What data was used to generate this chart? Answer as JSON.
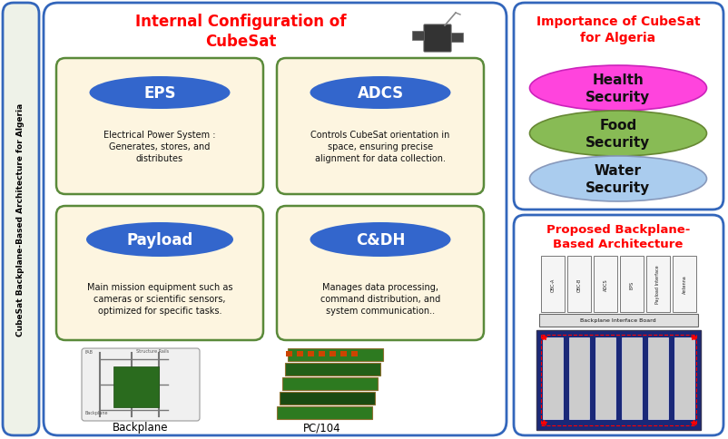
{
  "bg_color": "#ffffff",
  "main_border_color": "#3366bb",
  "left_panel_bg": "#eef2e8",
  "left_panel_text": "CubeSat Backplane-Based Architecture for Algeria",
  "left_panel_text_color": "#000000",
  "main_title": "Internal Configuration of\nCubeSat",
  "main_title_color": "#ff0000",
  "eps_box_bg": "#fdf5e0",
  "eps_box_border": "#5a8a3a",
  "eps_label": "EPS",
  "eps_desc": "Electrical Power System :\nGenerates, stores, and\ndistributes",
  "adcs_box_bg": "#fdf5e0",
  "adcs_box_border": "#5a8a3a",
  "adcs_label": "ADCS",
  "adcs_desc": "Controls CubeSat orientation in\nspace, ensuring precise\nalignment for data collection.",
  "payload_box_bg": "#fdf5e0",
  "payload_box_border": "#5a8a3a",
  "payload_label": "Payload",
  "payload_desc": "Main mission equipment such as\ncameras or scientific sensors,\noptimized for specific tasks.",
  "cdh_box_bg": "#fdf5e0",
  "cdh_box_border": "#5a8a3a",
  "cdh_label": "C&DH",
  "cdh_desc": "Manages data processing,\ncommand distribution, and\nsystem communication..",
  "subsystem_ellipse_color": "#3366cc",
  "subsystem_text_color": "#ffffff",
  "bottom_left_label": "Backplane",
  "bottom_right_label": "PC/104",
  "right_top_title": "Importance of CubeSat\nfor Algeria",
  "right_top_title_color": "#ff0000",
  "health_color": "#ff44dd",
  "food_color": "#88bb55",
  "water_color": "#aaccee",
  "health_label": "Health\nSecurity",
  "food_label": "Food\nSecurity",
  "water_label": "Water\nSecurity",
  "right_bottom_title": "Proposed Backplane-\nBased Architecture",
  "right_bottom_title_color": "#ff0000",
  "backplane_slots": [
    "OBC-A",
    "OBC-B",
    "ADCS",
    "EPS",
    "Payload Interface",
    "Antenna"
  ],
  "backplane_board_label": "Backplane Interface Board"
}
